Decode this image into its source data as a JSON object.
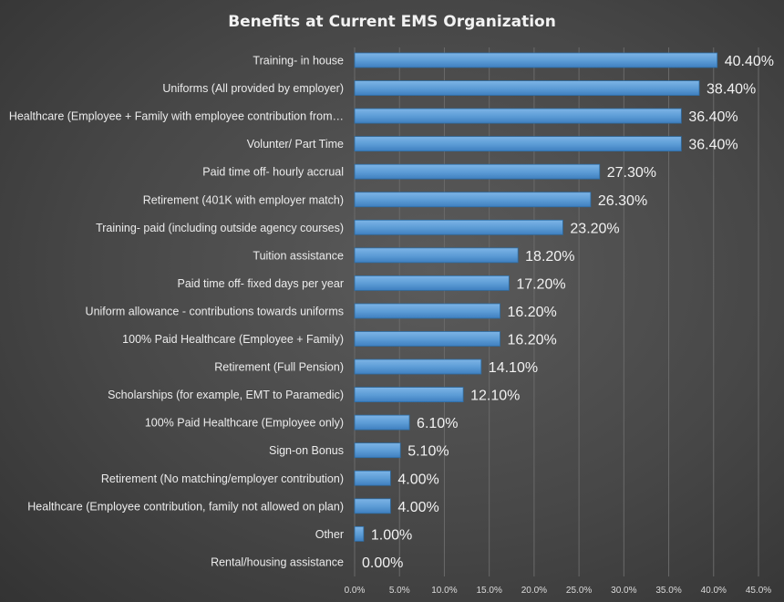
{
  "chart_data": {
    "type": "bar",
    "orientation": "horizontal",
    "title": "Benefits at Current EMS Organization",
    "categories": [
      "Training- in house",
      "Uniforms (All provided by employer)",
      "Healthcare (Employee + Family with employee contribution from…",
      "Volunter/ Part Time",
      "Paid time off- hourly accrual",
      "Retirement (401K with employer match)",
      "Training- paid (including outside agency courses)",
      "Tuition assistance",
      "Paid time off- fixed days per year",
      "Uniform allowance - contributions towards uniforms",
      "100% Paid Healthcare (Employee + Family)",
      "Retirement (Full Pension)",
      "Scholarships (for example, EMT to Paramedic)",
      "100% Paid Healthcare (Employee only)",
      "Sign-on Bonus",
      "Retirement (No matching/employer contribution)",
      "Healthcare (Employee contribution, family not allowed on plan)",
      "Other",
      "Rental/housing assistance"
    ],
    "values": [
      40.4,
      38.4,
      36.4,
      36.4,
      27.3,
      26.3,
      23.2,
      18.2,
      17.2,
      16.2,
      16.2,
      14.1,
      12.1,
      6.1,
      5.1,
      4.0,
      4.0,
      1.0,
      0.0
    ],
    "value_labels": [
      "40.40%",
      "38.40%",
      "36.40%",
      "36.40%",
      "27.30%",
      "26.30%",
      "23.20%",
      "18.20%",
      "17.20%",
      "16.20%",
      "16.20%",
      "14.10%",
      "12.10%",
      "6.10%",
      "5.10%",
      "4.00%",
      "4.00%",
      "1.00%",
      "0.00%"
    ],
    "x_ticks": [
      "0.0%",
      "5.0%",
      "10.0%",
      "15.0%",
      "20.0%",
      "25.0%",
      "30.0%",
      "35.0%",
      "40.0%",
      "45.0%"
    ],
    "xlim": [
      0,
      45
    ],
    "xlabel": "",
    "ylabel": "",
    "grid": "vertical",
    "legend": "none",
    "colors": {
      "bar": "#5b9bd5",
      "bar_edge": "#2e6da4",
      "text": "#f2f2f2",
      "background": "#474747"
    }
  }
}
